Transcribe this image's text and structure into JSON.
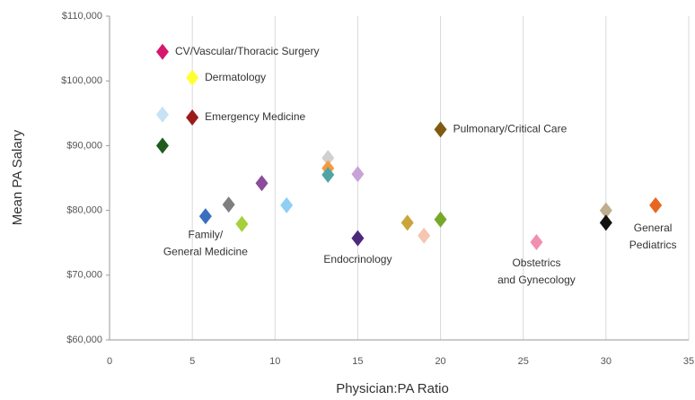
{
  "chart_data": {
    "type": "scatter",
    "xlabel": "Physician:PA Ratio",
    "ylabel": "Mean PA Salary",
    "xlim": [
      0,
      35
    ],
    "xticks": [
      0,
      5,
      10,
      15,
      20,
      25,
      30,
      35
    ],
    "ylim": [
      60000,
      110000
    ],
    "yticks": [
      {
        "value": 60000,
        "label": "$60,000"
      },
      {
        "value": 70000,
        "label": "$70,000"
      },
      {
        "value": 80000,
        "label": "$80,000"
      },
      {
        "value": 90000,
        "label": "$90,000"
      },
      {
        "value": 100000,
        "label": "$100,000"
      },
      {
        "value": 110000,
        "label": "$110,000"
      }
    ],
    "grid": true,
    "points": [
      {
        "x": 3.2,
        "y": 104500,
        "color": "#d6176f",
        "label": [
          "CV/Vascular/Thoracic Surgery"
        ]
      },
      {
        "x": 5,
        "y": 100500,
        "color": "#ffff33",
        "label": [
          "Dermatology"
        ]
      },
      {
        "x": 3.2,
        "y": 94800,
        "color": "#c5e3f5"
      },
      {
        "x": 5,
        "y": 94350,
        "color": "#9b1b1b",
        "label": [
          "Emergency Medicine"
        ]
      },
      {
        "x": 3.2,
        "y": 90000,
        "color": "#1e5c1e"
      },
      {
        "x": 5.8,
        "y": 79100,
        "color": "#3a6fbf",
        "label": [
          "Family/",
          "General Medicine"
        ]
      },
      {
        "x": 7.2,
        "y": 80900,
        "color": "#7f7f7f"
      },
      {
        "x": 8,
        "y": 77900,
        "color": "#a6cf3a"
      },
      {
        "x": 9.2,
        "y": 84200,
        "color": "#8b4c99"
      },
      {
        "x": 10.7,
        "y": 80800,
        "color": "#8fd0f2"
      },
      {
        "x": 13.2,
        "y": 88100,
        "color": "#d0d0d0"
      },
      {
        "x": 13.2,
        "y": 86500,
        "color": "#f79a3c"
      },
      {
        "x": 13.2,
        "y": 85500,
        "color": "#4fa5a5"
      },
      {
        "x": 15,
        "y": 85600,
        "color": "#c9a3d8"
      },
      {
        "x": 15,
        "y": 75700,
        "color": "#4b2a7b",
        "label": [
          "Endocrinology"
        ]
      },
      {
        "x": 18,
        "y": 78100,
        "color": "#c9a53a"
      },
      {
        "x": 19,
        "y": 76100,
        "color": "#f5c6b0"
      },
      {
        "x": 20,
        "y": 78600,
        "color": "#78a82a"
      },
      {
        "x": 20,
        "y": 92500,
        "color": "#7f5a10",
        "label": [
          "Pulmonary/Critical Care"
        ]
      },
      {
        "x": 25.8,
        "y": 75100,
        "color": "#f08fb0",
        "label": [
          "Obstetrics",
          "and Gynecology"
        ]
      },
      {
        "x": 30,
        "y": 80000,
        "color": "#bfae8f"
      },
      {
        "x": 30,
        "y": 78100,
        "color": "#111111"
      },
      {
        "x": 33,
        "y": 80800,
        "color": "#e8661f",
        "label": [
          "General",
          "Pediatrics"
        ]
      }
    ]
  }
}
